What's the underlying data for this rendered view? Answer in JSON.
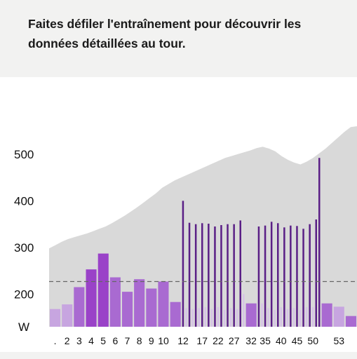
{
  "message": "Faites défiler l'entraînement pour découvrir les données détaillées au tour.",
  "chart_data": {
    "type": "bar",
    "ylabel": "W",
    "ylim": [
      130,
      560
    ],
    "yticks": [
      200,
      300,
      400,
      500
    ],
    "reference_line": 227,
    "x_tick_labels": ".|2|3|4|5|6|7|8|9|10|12|17|22|27|32|35|40|45|50|53",
    "background_power_profile": [
      298,
      305,
      312,
      318,
      322,
      326,
      330,
      335,
      340,
      345,
      352,
      360,
      368,
      377,
      386,
      396,
      406,
      416,
      428,
      436,
      444,
      450,
      456,
      462,
      468,
      474,
      480,
      486,
      492,
      496,
      500,
      504,
      508,
      513,
      516,
      512,
      506,
      496,
      488,
      482,
      478,
      484,
      492,
      502,
      512,
      524,
      536,
      548,
      558,
      560
    ],
    "laps": [
      {
        "label": ".",
        "value": 168,
        "color": "#c7a5e0"
      },
      {
        "label": "2",
        "value": 178,
        "color": "#c7a5e0"
      },
      {
        "label": "3",
        "value": 215,
        "color": "#a96ad1"
      },
      {
        "label": "4",
        "value": 253,
        "color": "#9a42c8"
      },
      {
        "label": "5",
        "value": 287,
        "color": "#9a42c8"
      },
      {
        "label": "6",
        "value": 236,
        "color": "#a96ad1"
      },
      {
        "label": "7",
        "value": 205,
        "color": "#a96ad1"
      },
      {
        "label": "8",
        "value": 232,
        "color": "#a96ad1"
      },
      {
        "label": "9",
        "value": 212,
        "color": "#a96ad1"
      },
      {
        "label": "10",
        "value": 227,
        "color": "#a96ad1"
      },
      {
        "label": "",
        "value": 183,
        "color": "#a96ad1"
      },
      {
        "label": "12",
        "value": 400,
        "color": "#5a1f86",
        "thin": true
      },
      {
        "label": "",
        "value": 170,
        "color": "#d6c3e6",
        "thin": true
      },
      {
        "label": "",
        "value": 353,
        "color": "#5a1f86",
        "thin": true
      },
      {
        "label": "",
        "value": 168,
        "color": "#d6c3e6",
        "thin": true
      },
      {
        "label": "",
        "value": 350,
        "color": "#5a1f86",
        "thin": true
      },
      {
        "label": "",
        "value": 170,
        "color": "#d6c3e6",
        "thin": true
      },
      {
        "label": "17",
        "value": 352,
        "color": "#5a1f86",
        "thin": true
      },
      {
        "label": "",
        "value": 172,
        "color": "#d6c3e6",
        "thin": true
      },
      {
        "label": "",
        "value": 351,
        "color": "#5a1f86",
        "thin": true
      },
      {
        "label": "",
        "value": 168,
        "color": "#d6c3e6",
        "thin": true
      },
      {
        "label": "",
        "value": 345,
        "color": "#5a1f86",
        "thin": true
      },
      {
        "label": "22",
        "value": 172,
        "color": "#d6c3e6",
        "thin": true
      },
      {
        "label": "",
        "value": 348,
        "color": "#5a1f86",
        "thin": true
      },
      {
        "label": "",
        "value": 166,
        "color": "#d6c3e6",
        "thin": true
      },
      {
        "label": "",
        "value": 350,
        "color": "#5a1f86",
        "thin": true
      },
      {
        "label": "",
        "value": 170,
        "color": "#d6c3e6",
        "thin": true
      },
      {
        "label": "27",
        "value": 350,
        "color": "#5a1f86",
        "thin": true
      },
      {
        "label": "",
        "value": 168,
        "color": "#d6c3e6",
        "thin": true
      },
      {
        "label": "",
        "value": 358,
        "color": "#5a1f86",
        "thin": true
      },
      {
        "label": "",
        "value": 200,
        "color": "#d6c3e6",
        "thin": true
      },
      {
        "label": "32",
        "value": 180,
        "color": "#a96ad1"
      },
      {
        "label": "",
        "value": 345,
        "color": "#5a1f86",
        "thin": true
      },
      {
        "label": "",
        "value": 180,
        "color": "#d6c3e6",
        "thin": true
      },
      {
        "label": "35",
        "value": 347,
        "color": "#5a1f86",
        "thin": true
      },
      {
        "label": "",
        "value": 170,
        "color": "#d6c3e6",
        "thin": true
      },
      {
        "label": "",
        "value": 355,
        "color": "#5a1f86",
        "thin": true
      },
      {
        "label": "",
        "value": 166,
        "color": "#d6c3e6",
        "thin": true
      },
      {
        "label": "",
        "value": 352,
        "color": "#5a1f86",
        "thin": true
      },
      {
        "label": "40",
        "value": 172,
        "color": "#d6c3e6",
        "thin": true
      },
      {
        "label": "",
        "value": 343,
        "color": "#5a1f86",
        "thin": true
      },
      {
        "label": "",
        "value": 168,
        "color": "#d6c3e6",
        "thin": true
      },
      {
        "label": "",
        "value": 347,
        "color": "#5a1f86",
        "thin": true
      },
      {
        "label": "",
        "value": 170,
        "color": "#d6c3e6",
        "thin": true
      },
      {
        "label": "45",
        "value": 346,
        "color": "#5a1f86",
        "thin": true
      },
      {
        "label": "",
        "value": 166,
        "color": "#d6c3e6",
        "thin": true
      },
      {
        "label": "",
        "value": 340,
        "color": "#5a1f86",
        "thin": true
      },
      {
        "label": "",
        "value": 172,
        "color": "#d6c3e6",
        "thin": true
      },
      {
        "label": "",
        "value": 350,
        "color": "#5a1f86",
        "thin": true
      },
      {
        "label": "50",
        "value": 172,
        "color": "#d6c3e6",
        "thin": true
      },
      {
        "label": "",
        "value": 360,
        "color": "#5a1f86",
        "thin": true
      },
      {
        "label": "",
        "value": 492,
        "color": "#5a1f86",
        "thin": true
      },
      {
        "label": "",
        "value": 180,
        "color": "#a96ad1"
      },
      {
        "label": "53",
        "value": 173,
        "color": "#c7a5e0"
      },
      {
        "label": "",
        "value": 153,
        "color": "#a96ad1"
      }
    ]
  }
}
